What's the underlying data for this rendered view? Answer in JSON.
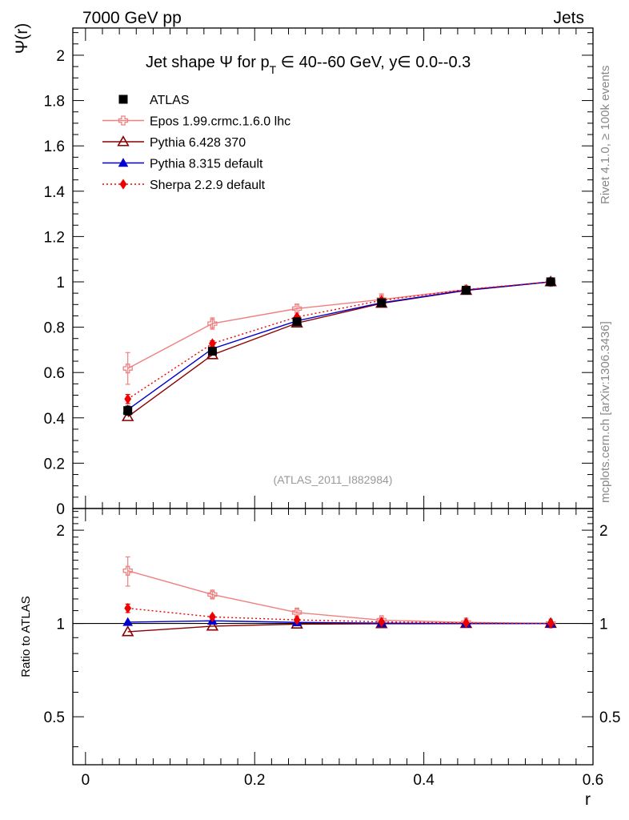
{
  "header": {
    "left": "7000 GeV pp",
    "right": "Jets"
  },
  "side_labels": {
    "top": "Rivet 4.1.0, ≥ 100k events",
    "bottom": "mcplots.cern.ch [arXiv:1306.3436]"
  },
  "chart_data": [
    {
      "type": "line",
      "panel": "main",
      "title": "Jet shape Ψ for p_T ∈ 40--60 GeV, y∈ 0.0--0.3",
      "title_parts": {
        "pre": "Jet shape Ψ for p",
        "sub": "T",
        "post": " ∈ 40--60 GeV, y∈ 0.0--0.3"
      },
      "xlabel": "r",
      "ylabel": "Ψ(r)",
      "xlim": [
        -0.015,
        0.6
      ],
      "ylim": [
        0,
        2.12
      ],
      "xticks": [
        0,
        0.2,
        0.4,
        0.6
      ],
      "xtick_labels": [
        "0",
        "0.2",
        "0.4",
        "0.6"
      ],
      "yticks": [
        0,
        0.2,
        0.4,
        0.6,
        0.8,
        1,
        1.2,
        1.4,
        1.6,
        1.8,
        2
      ],
      "ytick_labels": [
        "0",
        "0.2",
        "0.4",
        "0.6",
        "0.8",
        "1",
        "1.2",
        "1.4",
        "1.6",
        "1.8",
        "2"
      ],
      "annotation": "(ATLAS_2011_I882984)",
      "legend_position": "top-left",
      "x": [
        0.05,
        0.15,
        0.25,
        0.35,
        0.45,
        0.55
      ],
      "series": [
        {
          "name": "ATLAS",
          "color": "#000000",
          "marker": "square",
          "line": "none",
          "values": [
            0.432,
            0.694,
            0.824,
            0.908,
            0.963,
            1.0
          ],
          "errors": [
            0.02,
            0.015,
            0.012,
            0.008,
            0.005,
            0.0
          ]
        },
        {
          "name": "Epos 1.99.crmc.1.6.0 lhc",
          "color": "#f08080",
          "marker": "open-cross",
          "line": "solid",
          "values": [
            0.618,
            0.816,
            0.882,
            0.922,
            0.966,
            1.0
          ],
          "errors": [
            0.07,
            0.025,
            0.02,
            0.025,
            0.012,
            0.0
          ]
        },
        {
          "name": "Pythia 6.428 370",
          "color": "#8b0000",
          "marker": "open-triangle",
          "line": "solid",
          "values": [
            0.405,
            0.678,
            0.818,
            0.905,
            0.962,
            1.0
          ],
          "errors": [
            0.0,
            0.0,
            0.0,
            0.0,
            0.0,
            0.0
          ]
        },
        {
          "name": "Pythia 8.315 default",
          "color": "#0000cc",
          "marker": "triangle",
          "line": "solid",
          "values": [
            0.436,
            0.705,
            0.828,
            0.908,
            0.963,
            1.0
          ],
          "errors": [
            0.0,
            0.0,
            0.0,
            0.0,
            0.0,
            0.0
          ]
        },
        {
          "name": "Sherpa 2.2.9 default",
          "color": "#ee0000",
          "marker": "diamond",
          "line": "dotted",
          "values": [
            0.483,
            0.728,
            0.845,
            0.918,
            0.966,
            1.0
          ],
          "errors": [
            0.02,
            0.012,
            0.008,
            0.006,
            0.004,
            0.0
          ]
        }
      ]
    },
    {
      "type": "line",
      "panel": "ratio",
      "ylabel": "Ratio to ATLAS",
      "xlabel": "r",
      "xlim": [
        -0.015,
        0.6
      ],
      "ylim": [
        0.35,
        2.35
      ],
      "yscale": "log",
      "yticks": [
        0.5,
        1,
        2
      ],
      "ytick_labels": [
        "0.5",
        "1",
        "2"
      ],
      "reference_line": 1,
      "x": [
        0.05,
        0.15,
        0.25,
        0.35,
        0.45,
        0.55
      ],
      "series": [
        {
          "name": "Epos 1.99.crmc.1.6.0 lhc",
          "color": "#f08080",
          "marker": "open-cross",
          "line": "solid",
          "values": [
            1.48,
            1.24,
            1.085,
            1.025,
            1.008,
            1.0
          ],
          "errors": [
            0.16,
            0.03,
            0.03,
            0.02,
            0.012,
            0.0
          ]
        },
        {
          "name": "Pythia 6.428 370",
          "color": "#8b0000",
          "marker": "open-triangle",
          "line": "solid",
          "values": [
            0.94,
            0.98,
            0.995,
            0.998,
            0.999,
            1.0
          ],
          "errors": [
            0.0,
            0.0,
            0.0,
            0.0,
            0.0,
            0.0
          ]
        },
        {
          "name": "Pythia 8.315 default",
          "color": "#0000cc",
          "marker": "triangle",
          "line": "solid",
          "values": [
            1.01,
            1.02,
            1.008,
            1.002,
            1.0,
            1.0
          ],
          "errors": [
            0.0,
            0.0,
            0.0,
            0.0,
            0.0,
            0.0
          ]
        },
        {
          "name": "Sherpa 2.2.9 default",
          "color": "#ee0000",
          "marker": "diamond",
          "line": "dotted",
          "values": [
            1.12,
            1.05,
            1.027,
            1.012,
            1.003,
            1.0
          ],
          "errors": [
            0.035,
            0.015,
            0.01,
            0.008,
            0.005,
            0.0
          ]
        }
      ]
    }
  ]
}
